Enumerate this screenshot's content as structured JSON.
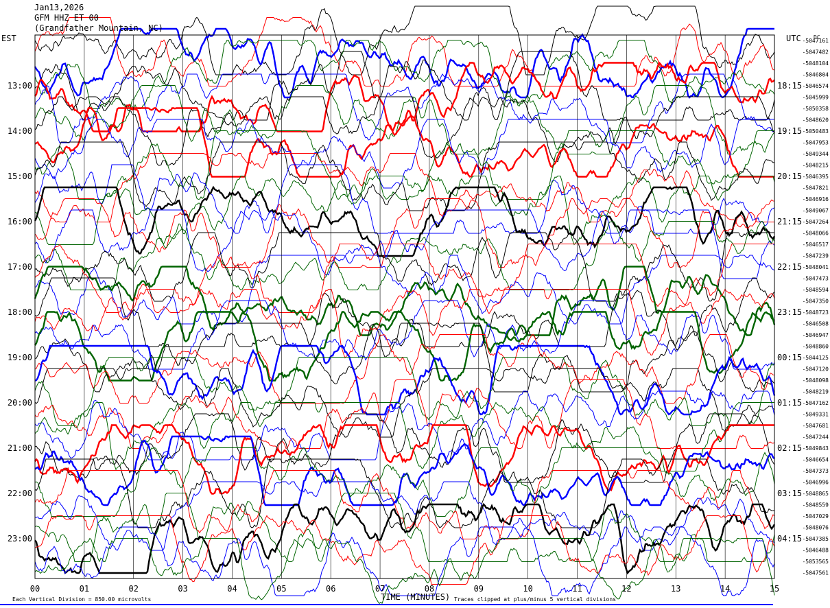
{
  "header": {
    "date": "Jan13,2026",
    "station": "GFM HHZ ET 00",
    "location": "(Grandfather Mountain, NC)"
  },
  "left_tz": "EST",
  "right_tz": "UTC",
  "dc_label": "DC",
  "xlabel": "TIME (MINUTES)",
  "footer_left": "Each Vertical Division = 850.00 microvolts",
  "footer_right": "Traces clipped at plus/minus 5 vertical divisions",
  "colors": {
    "black": "#000000",
    "red": "#ff0000",
    "blue": "#0000ff",
    "green": "#006400",
    "frame": "#000000"
  },
  "chart_data": {
    "type": "line",
    "xlim": [
      0,
      15
    ],
    "x_ticks": [
      "00",
      "01",
      "02",
      "03",
      "04",
      "05",
      "06",
      "07",
      "08",
      "09",
      "10",
      "11",
      "12",
      "13",
      "14",
      "15"
    ],
    "left_hour_labels": [
      "13:00",
      "14:00",
      "15:00",
      "16:00",
      "17:00",
      "18:00",
      "19:00",
      "20:00",
      "21:00",
      "22:00",
      "23:00"
    ],
    "left_hour_rows": [
      4,
      8,
      12,
      16,
      20,
      24,
      28,
      32,
      36,
      40,
      44
    ],
    "right_hour_labels": [
      "18:15",
      "19:15",
      "20:15",
      "21:15",
      "22:15",
      "23:15",
      "00:15",
      "01:15",
      "02:15",
      "03:15",
      "04:15"
    ],
    "right_hour_rows": [
      4,
      8,
      12,
      16,
      20,
      24,
      28,
      32,
      36,
      40,
      44
    ],
    "trace_count": 48,
    "trace_color_cycle": [
      "black",
      "red",
      "blue",
      "green"
    ],
    "dc_offsets": [
      "-5047161",
      "-5047482",
      "-5048104",
      "-5046804",
      "-5046574",
      "-5045999",
      "-5050358",
      "-5048620",
      "-5050483",
      "-5047953",
      "-5049344",
      "-5048215",
      "-5046395",
      "-5047821",
      "-5046916",
      "-5049067",
      "-5047264",
      "-5048066",
      "-5046517",
      "-5047239",
      "-5048041",
      "-5047473",
      "-5048594",
      "-5047350",
      "-5048723",
      "-5046508",
      "-5046947",
      "-5048860",
      "-5044125",
      "-5047120",
      "-5048098",
      "-5048219",
      "-5047162",
      "-5049331",
      "-5047681",
      "-5047244",
      "-5049843",
      "-5046654",
      "-5047373",
      "-5046996",
      "-5048865",
      "-5048559",
      "-5047029",
      "-5048076",
      "-5047385",
      "-5046488",
      "-5053565",
      "-5047561"
    ],
    "vertical_division_microvolts": 850.0,
    "clip_divisions": 5
  }
}
